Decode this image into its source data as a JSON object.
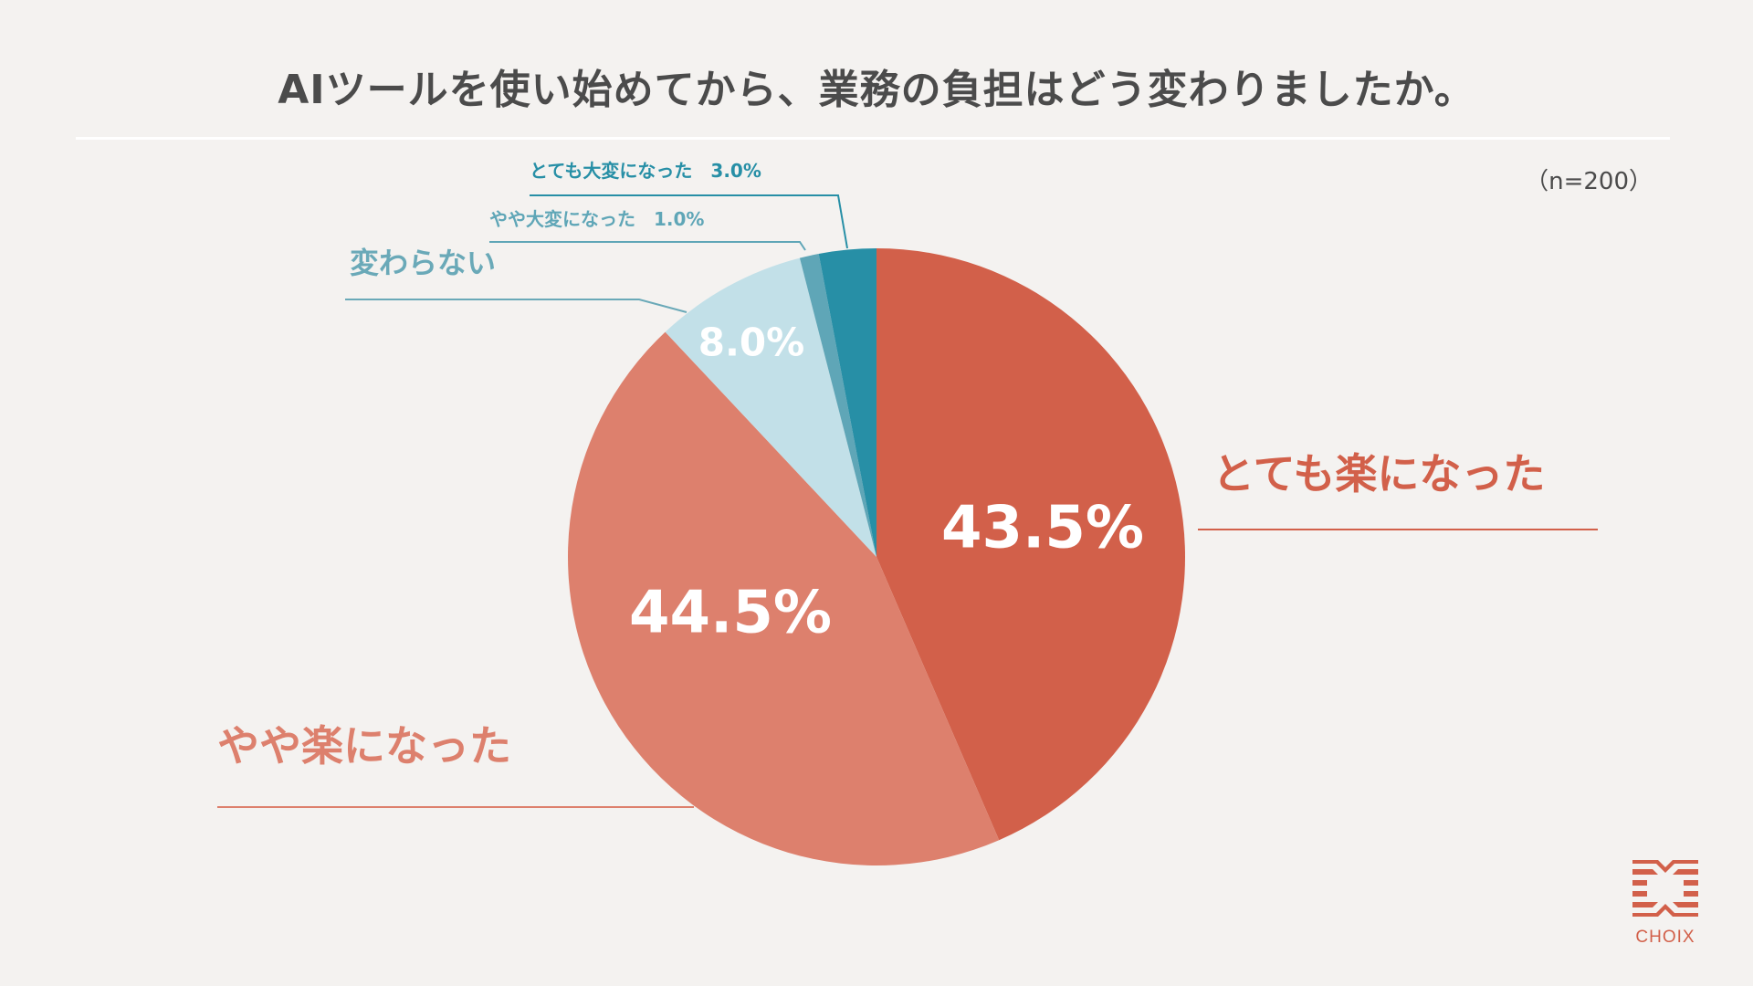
{
  "title": "AIツールを使い始めてから、業務の負担はどう変わりましたか。",
  "sample_size": "（n=200）",
  "logo_text": "CHOIX",
  "chart_data": {
    "type": "pie",
    "start_angle_deg": 0,
    "direction": "clockwise",
    "slices": [
      {
        "label": "とても楽になった",
        "value": 43.5,
        "value_label": "43.5%",
        "color": "#d2604a",
        "label_color": "#d2604a"
      },
      {
        "label": "やや楽になった",
        "value": 44.5,
        "value_label": "44.5%",
        "color": "#dd806d",
        "label_color": "#dd806d"
      },
      {
        "label": "変わらない",
        "value": 8.0,
        "value_label": "8.0%",
        "color": "#c2e0e8",
        "label_color": "#6aa9b8"
      },
      {
        "label": "やや大変になった",
        "value": 1.0,
        "value_label": "1.0%",
        "color": "#5fa6b7",
        "label_color": "#5fa6b7"
      },
      {
        "label": "とても大変になった",
        "value": 3.0,
        "value_label": "3.0%",
        "color": "#278fa6",
        "label_color": "#278fa6"
      }
    ]
  }
}
